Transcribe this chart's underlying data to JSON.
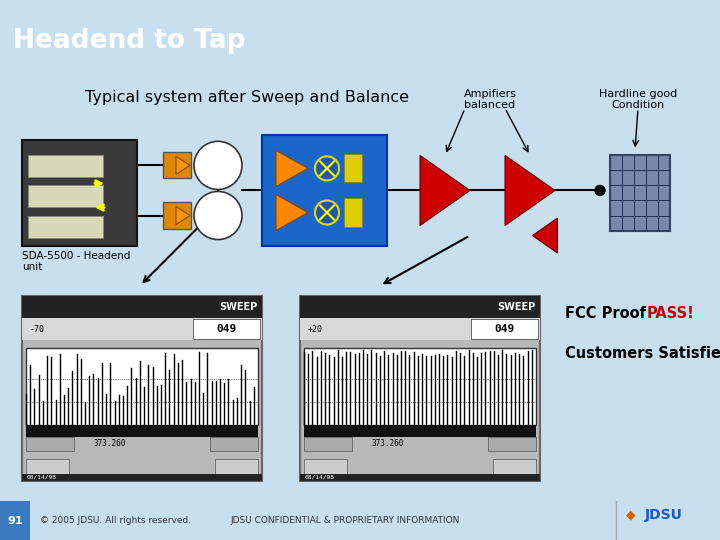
{
  "title": "Headend to Tap",
  "title_bg": "#1a7bbf",
  "title_color": "#ffffff",
  "subtitle": "Typical system after Sweep and Balance",
  "bg_main": "#ffffff",
  "bg_fig": "#c8dff0",
  "footer_num": "91",
  "footer_num_bg": "#3a7bbf",
  "footer_copy": "© 2005 JDSU. All rights reserved.",
  "footer_conf": "JDSU CONFIDENTIAL & PROPRIETARY INFORMATION",
  "label_amplifiers": "Ampifiers\nbalanced",
  "label_hardline": "Hardline good\nCondition",
  "label_sda": "SDA-5500 - Headend\nunit",
  "fcc_proof": "FCC Proof ",
  "fcc_pass": "PASS!",
  "fcc_color": "#cc0000",
  "label_customers": "Customers Satisfied!"
}
